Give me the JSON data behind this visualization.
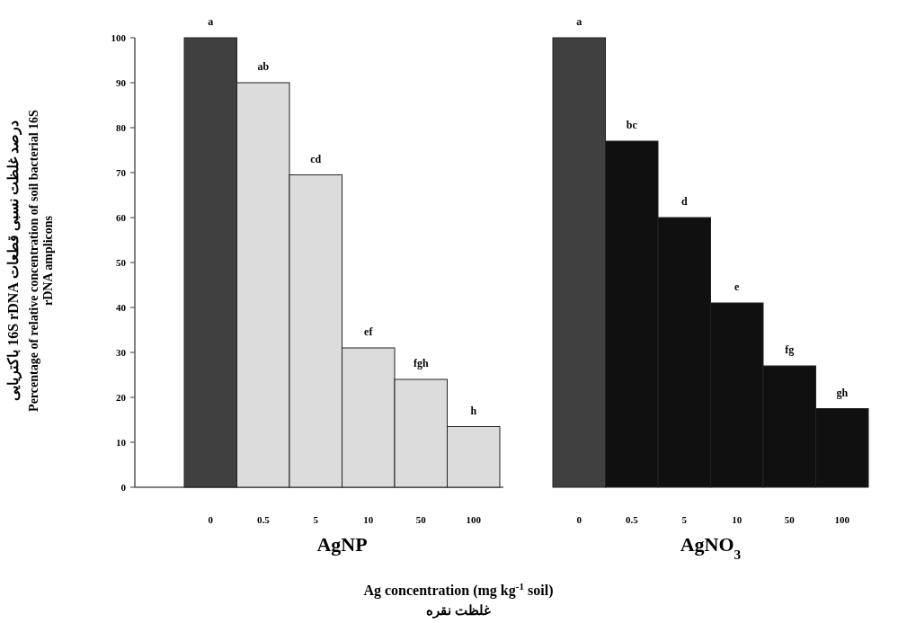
{
  "chart_data": [
    {
      "type": "bar",
      "xlabel": "AgNP",
      "ylabel": "Percentage of relative concentration of soil bacterial 16S rDNA amplicons",
      "categories": [
        "0",
        "0.5",
        "5",
        "10",
        "50",
        "100"
      ],
      "values": [
        100,
        90,
        69.5,
        31,
        24,
        13.5
      ],
      "colors": [
        "#404040",
        "#dcdcdc",
        "#dcdcdc",
        "#dcdcdc",
        "#dcdcdc",
        "#dcdcdc"
      ],
      "value_labels": [
        "a",
        "ab",
        "cd",
        "ef",
        "fgh",
        "h"
      ],
      "ylim": [
        0,
        100
      ],
      "yticks": [
        0,
        10,
        20,
        30,
        40,
        50,
        60,
        70,
        80,
        90,
        100
      ],
      "annotations": [
        "Ag concentration (mg kg$^{-1}$ soil)",
        "غلظت نقره",
        "درصد غلظت نسبی قطعات 16S rDNA باکتریایی"
      ]
    },
    {
      "type": "bar",
      "xlabel": "AgNO$_{3}$",
      "categories": [
        "0",
        "0.5",
        "5",
        "10",
        "50",
        "100"
      ],
      "values": [
        100,
        77,
        60,
        41,
        27,
        17.5
      ],
      "colors": [
        "#404040",
        "#101010",
        "#101010",
        "#101010",
        "#101010",
        "#101010"
      ],
      "value_labels": [
        "a",
        "bc",
        "d",
        "e",
        "fg",
        "gh"
      ],
      "ylim": [
        0,
        100
      ],
      "tick_labels": "x"
    }
  ]
}
